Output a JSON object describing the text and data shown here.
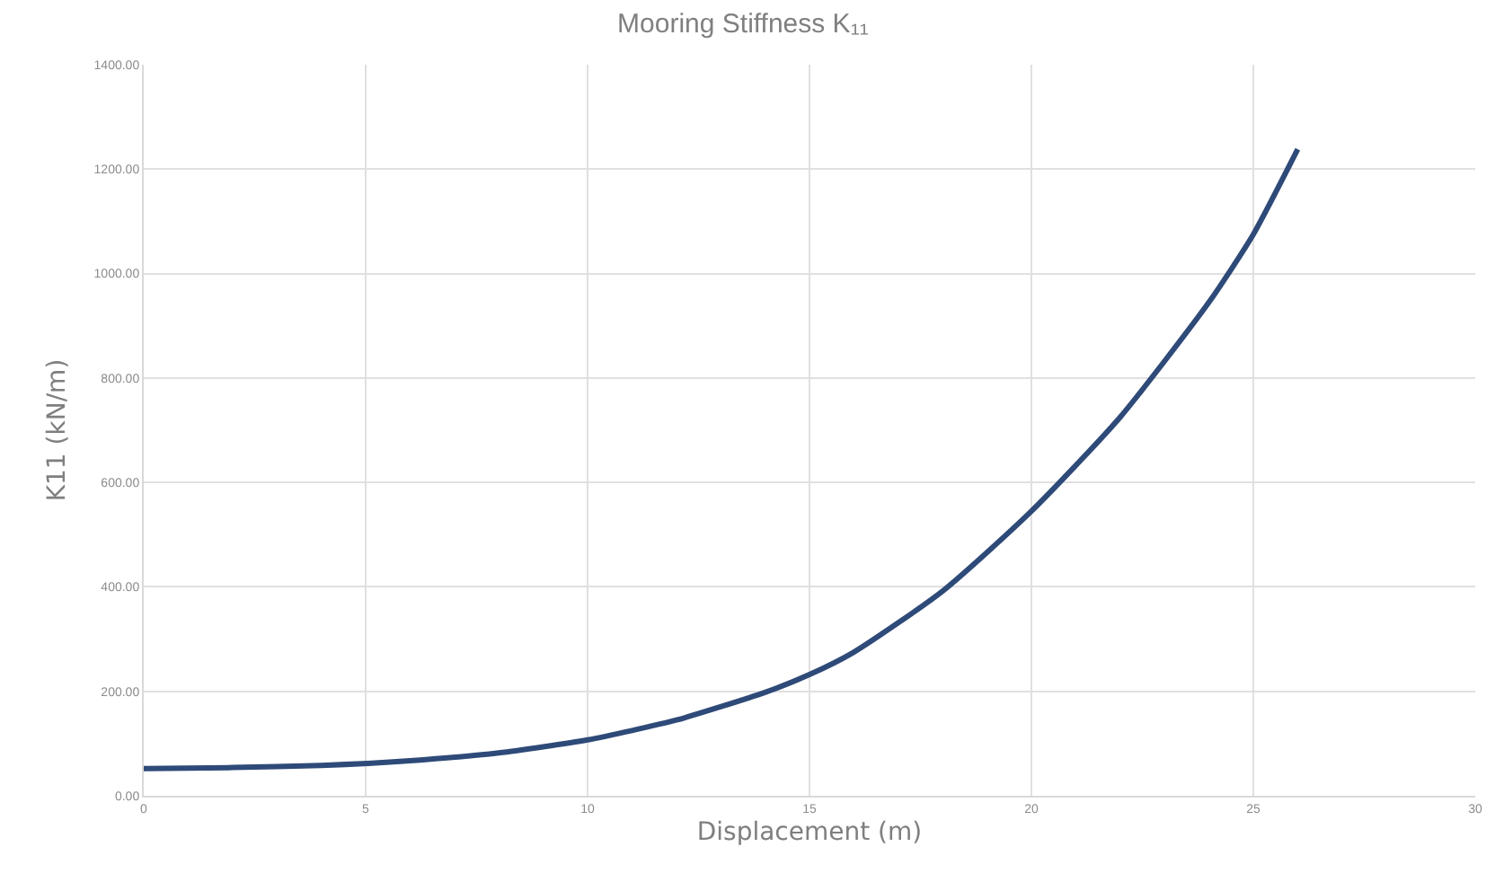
{
  "chart_data": {
    "type": "line",
    "title": "Mooring Stiffness K₁₁",
    "xlabel": "Displacement (m)",
    "ylabel": "K11 (kN/m)",
    "x": [
      0,
      2,
      4,
      6,
      8,
      10,
      12,
      14,
      15,
      16,
      18,
      20,
      22,
      24,
      25,
      26
    ],
    "series": [
      {
        "color": "#2e4a78",
        "values": [
          52,
          54,
          58,
          67,
          82,
          107,
          145,
          198,
          232,
          275,
          392,
          545,
          725,
          945,
          1075,
          1238
        ]
      }
    ],
    "xlim": [
      0,
      30
    ],
    "xticks": [
      0,
      5,
      10,
      15,
      20,
      25,
      30
    ],
    "ylim": [
      0,
      1400
    ],
    "yticks": [
      {
        "value": 0,
        "label": "0.00"
      },
      {
        "value": 200,
        "label": "200.00"
      },
      {
        "value": 400,
        "label": "400.00"
      },
      {
        "value": 600,
        "label": "600.00"
      },
      {
        "value": 800,
        "label": "800.00"
      },
      {
        "value": 1000,
        "label": "1000.00"
      },
      {
        "value": 1200,
        "label": "1200.00"
      },
      {
        "value": 1400,
        "label": "1400.00"
      }
    ],
    "grid": true,
    "marker": "none",
    "line_style": "solid"
  }
}
